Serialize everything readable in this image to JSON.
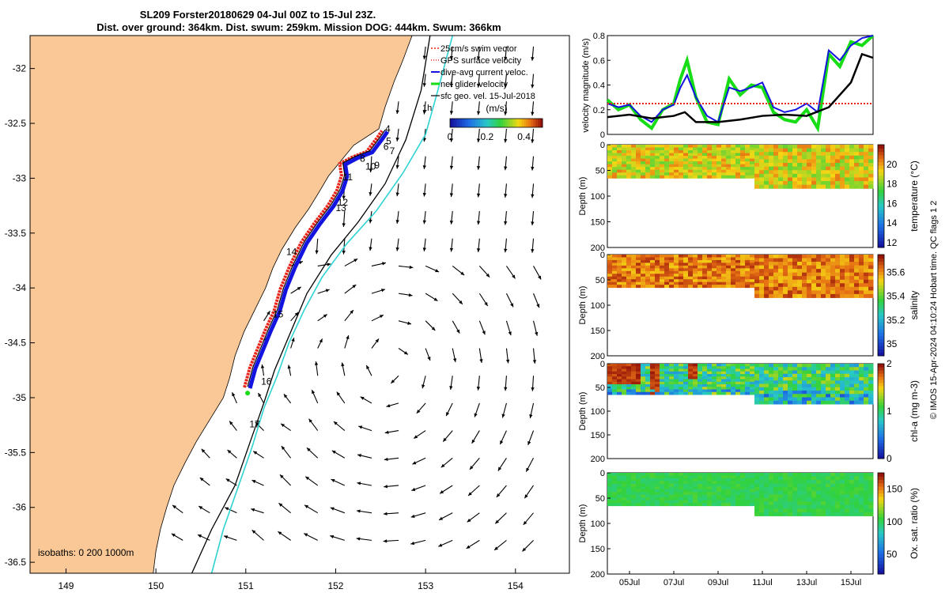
{
  "figure": {
    "title_line1": "SL209 Forster20180629 04-Jul 00Z to 15-Jul 23Z.",
    "title_line2": "Dist. over ground: 364km. Dist. swum: 259km. Mission DOG: 444km. Swum: 366km",
    "credit": "© IMOS 15-Apr-2024 04:10:24 Hobart time. QC flags 1  2"
  },
  "colors": {
    "land": "#f9c896",
    "coast": "#000000",
    "isobath_200": "#2fd3d3",
    "isobath_1000": "#000000",
    "gps_track": "#e8251a",
    "dive_avg": "#1414e0",
    "net_velocity": "#16dd16",
    "geo_vector": "#000000"
  },
  "chart_data": [
    {
      "type": "map",
      "name": "track-map",
      "xlim": [
        148.6,
        154.6
      ],
      "ylim": [
        -36.6,
        -31.7
      ],
      "xticks": [
        149,
        150,
        151,
        152,
        153,
        154
      ],
      "yticks": [
        -32,
        -32.5,
        -33,
        -33.5,
        -34,
        -34.5,
        -35,
        -35.5,
        -36,
        -36.5
      ],
      "legend": {
        "placement": "top-right",
        "entries": [
          "25cm/s swim vector",
          "GPS surface velocity",
          "dive-avg current veloc.",
          "net glider velocity",
          "sfc geo. vel. 15-Jul-2018"
        ]
      },
      "colorbar": {
        "label": "(m/s)",
        "ticks": [
          0,
          0.2,
          0.4
        ],
        "range": [
          0,
          0.5
        ]
      },
      "isobath_label": "isobaths: 0   200  1000m",
      "corner_label": "1h",
      "glider_track": [
        [
          151.02,
          -34.9
        ],
        [
          151.08,
          -34.72
        ],
        [
          151.15,
          -34.58
        ],
        [
          151.25,
          -34.38
        ],
        [
          151.35,
          -34.2
        ],
        [
          151.42,
          -34.0
        ],
        [
          151.52,
          -33.8
        ],
        [
          151.65,
          -33.58
        ],
        [
          151.8,
          -33.4
        ],
        [
          151.95,
          -33.24
        ],
        [
          152.05,
          -33.1
        ],
        [
          152.1,
          -32.97
        ],
        [
          152.08,
          -32.86
        ],
        [
          152.22,
          -32.8
        ],
        [
          152.38,
          -32.75
        ],
        [
          152.5,
          -32.62
        ],
        [
          152.55,
          -32.56
        ]
      ],
      "day_labels": [
        {
          "day": "4",
          "lon": 152.55,
          "lat": -32.58
        },
        {
          "day": "5",
          "lon": 152.56,
          "lat": -32.69
        },
        {
          "day": "6",
          "lon": 152.53,
          "lat": -32.74
        },
        {
          "day": "7",
          "lon": 152.6,
          "lat": -32.78
        },
        {
          "day": "8",
          "lon": 152.27,
          "lat": -32.85
        },
        {
          "day": "9",
          "lon": 152.43,
          "lat": -32.91
        },
        {
          "day": "10",
          "lon": 152.33,
          "lat": -32.92
        },
        {
          "day": "11",
          "lon": 152.08,
          "lat": -33.02
        },
        {
          "day": "12",
          "lon": 152.02,
          "lat": -33.25
        },
        {
          "day": "13",
          "lon": 152.0,
          "lat": -33.3
        },
        {
          "day": "14",
          "lon": 151.45,
          "lat": -33.7
        },
        {
          "day": "15",
          "lon": 151.3,
          "lat": -34.27
        },
        {
          "day": "16",
          "lon": 151.17,
          "lat": -34.88
        },
        {
          "day": "17",
          "lon": 151.04,
          "lat": -35.27
        }
      ],
      "coastline": [
        [
          152.85,
          -31.7
        ],
        [
          152.75,
          -31.92
        ],
        [
          152.65,
          -32.12
        ],
        [
          152.55,
          -32.35
        ],
        [
          152.48,
          -32.55
        ],
        [
          152.2,
          -32.7
        ],
        [
          152.05,
          -32.85
        ],
        [
          151.92,
          -32.98
        ],
        [
          151.82,
          -33.12
        ],
        [
          151.7,
          -33.28
        ],
        [
          151.55,
          -33.45
        ],
        [
          151.4,
          -33.65
        ],
        [
          151.3,
          -33.82
        ],
        [
          151.22,
          -34.0
        ],
        [
          151.1,
          -34.2
        ],
        [
          150.98,
          -34.4
        ],
        [
          150.88,
          -34.62
        ],
        [
          150.82,
          -34.82
        ],
        [
          150.75,
          -35.0
        ],
        [
          150.6,
          -35.2
        ],
        [
          150.45,
          -35.4
        ],
        [
          150.32,
          -35.6
        ],
        [
          150.2,
          -35.8
        ],
        [
          150.12,
          -36.0
        ],
        [
          150.05,
          -36.2
        ],
        [
          150.0,
          -36.4
        ],
        [
          149.97,
          -36.6
        ]
      ],
      "isobath_200": [
        [
          153.3,
          -31.7
        ],
        [
          153.12,
          -32.25
        ],
        [
          153.0,
          -32.6
        ],
        [
          152.75,
          -32.95
        ],
        [
          152.45,
          -33.3
        ],
        [
          152.12,
          -33.6
        ],
        [
          151.85,
          -33.9
        ],
        [
          151.65,
          -34.2
        ],
        [
          151.48,
          -34.5
        ],
        [
          151.35,
          -34.8
        ],
        [
          151.2,
          -35.1
        ],
        [
          151.07,
          -35.45
        ],
        [
          150.9,
          -35.85
        ],
        [
          150.75,
          -36.2
        ],
        [
          150.62,
          -36.6
        ]
      ],
      "isobath_1000": [
        [
          153.05,
          -31.7
        ],
        [
          152.95,
          -32.2
        ],
        [
          152.78,
          -32.65
        ],
        [
          152.55,
          -33.05
        ],
        [
          152.25,
          -33.4
        ],
        [
          151.95,
          -33.7
        ],
        [
          151.68,
          -34.05
        ],
        [
          151.5,
          -34.4
        ],
        [
          151.32,
          -34.75
        ],
        [
          151.2,
          -35.05
        ],
        [
          151.05,
          -35.4
        ],
        [
          150.88,
          -35.8
        ],
        [
          150.62,
          -36.2
        ],
        [
          150.4,
          -36.6
        ]
      ]
    },
    {
      "type": "line",
      "name": "velocity-magnitude",
      "ylabel": "velocity magnitude (m/s)",
      "ylim": [
        0,
        0.8
      ],
      "yticks": [
        0,
        0.2,
        0.4,
        0.6,
        0.8
      ],
      "xlim": [
        0,
        12
      ],
      "series": [
        {
          "key": "net",
          "color": "#16dd16",
          "x": [
            0,
            0.5,
            1,
            1.5,
            2,
            2.5,
            3,
            3.3,
            3.6,
            4,
            4.5,
            5,
            5.5,
            6,
            6.5,
            7,
            7.5,
            8,
            8.5,
            9,
            9.5,
            10,
            10.5,
            11,
            11.5,
            12
          ],
          "y": [
            0.28,
            0.2,
            0.24,
            0.12,
            0.05,
            0.2,
            0.25,
            0.45,
            0.6,
            0.3,
            0.1,
            0.08,
            0.45,
            0.32,
            0.4,
            0.38,
            0.18,
            0.12,
            0.1,
            0.2,
            0.05,
            0.65,
            0.55,
            0.75,
            0.72,
            0.8
          ]
        },
        {
          "key": "dive",
          "color": "#1414e0",
          "x": [
            0,
            0.5,
            1,
            1.5,
            2,
            2.5,
            3,
            3.3,
            3.6,
            4,
            4.5,
            5,
            5.5,
            6,
            6.5,
            7,
            7.5,
            8,
            8.5,
            9,
            9.5,
            10,
            10.5,
            11,
            11.5,
            12
          ],
          "y": [
            0.25,
            0.22,
            0.24,
            0.15,
            0.1,
            0.2,
            0.24,
            0.38,
            0.48,
            0.3,
            0.15,
            0.1,
            0.38,
            0.35,
            0.38,
            0.42,
            0.22,
            0.18,
            0.2,
            0.25,
            0.18,
            0.68,
            0.6,
            0.72,
            0.78,
            0.8
          ]
        },
        {
          "key": "gps",
          "color": "#e8251a",
          "dashed": true,
          "x": [
            0,
            12
          ],
          "y": [
            0.25,
            0.25
          ]
        },
        {
          "key": "geo",
          "color": "#000000",
          "x": [
            0,
            1,
            2,
            3,
            3.5,
            4,
            5,
            6,
            7,
            8,
            9,
            10,
            11,
            11.5,
            12
          ],
          "y": [
            0.14,
            0.16,
            0.13,
            0.15,
            0.18,
            0.1,
            0.1,
            0.12,
            0.15,
            0.16,
            0.15,
            0.22,
            0.42,
            0.65,
            0.62
          ]
        }
      ]
    },
    {
      "type": "heatmap",
      "name": "temperature",
      "ylabel": "Depth (m)",
      "cbar_label": "temperature (°C)",
      "cbar_ticks": [
        12,
        14,
        16,
        18,
        20
      ],
      "clim": [
        11.5,
        22
      ],
      "yticks": [
        0,
        50,
        100,
        150,
        200
      ],
      "ylim": [
        0,
        200
      ],
      "x_break": 6.55,
      "depth_before": 65,
      "depth_after": 85,
      "cmap": "parula-like",
      "value_range": [
        17.8,
        20.6
      ]
    },
    {
      "type": "heatmap",
      "name": "salinity",
      "ylabel": "Depth (m)",
      "cbar_label": "salinity",
      "cbar_ticks": [
        35,
        35.2,
        35.4,
        35.6
      ],
      "clim": [
        34.9,
        35.75
      ],
      "yticks": [
        0,
        50,
        100,
        150,
        200
      ],
      "ylim": [
        0,
        200
      ],
      "x_break": 6.55,
      "depth_before": 65,
      "depth_after": 85,
      "value_range": [
        35.55,
        35.72
      ]
    },
    {
      "type": "heatmap",
      "name": "chlorophyll",
      "ylabel": "Depth (m)",
      "cbar_label": "chl-a (mg m-3)",
      "cbar_ticks": [
        0,
        1,
        2
      ],
      "clim": [
        0,
        2
      ],
      "yticks": [
        0,
        50,
        100,
        150,
        200
      ],
      "ylim": [
        0,
        200
      ],
      "x_break": 6.55,
      "depth_before": 65,
      "depth_after": 85,
      "value_range": [
        0.7,
        2.0
      ]
    },
    {
      "type": "heatmap",
      "name": "oxygen",
      "ylabel": "Depth (m)",
      "cbar_label": "Ox. sat. ratio (%)",
      "cbar_ticks": [
        50,
        100,
        150
      ],
      "clim": [
        20,
        175
      ],
      "yticks": [
        0,
        50,
        100,
        150,
        200
      ],
      "ylim": [
        0,
        200
      ],
      "x_break": 6.55,
      "depth_before": 65,
      "depth_after": 85,
      "value_range": [
        95,
        110
      ]
    }
  ],
  "time_axis": {
    "xlim": [
      0,
      12
    ],
    "ticks": [
      {
        "pos": 1,
        "label": "05Jul"
      },
      {
        "pos": 3,
        "label": "07Jul"
      },
      {
        "pos": 5,
        "label": "09Jul"
      },
      {
        "pos": 7,
        "label": "11Jul"
      },
      {
        "pos": 9,
        "label": "13Jul"
      },
      {
        "pos": 11,
        "label": "15Jul"
      }
    ]
  }
}
